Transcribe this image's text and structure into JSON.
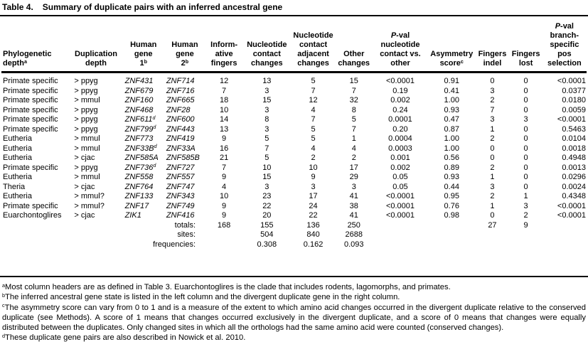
{
  "table": {
    "title_label": "Table 4.",
    "title": "Summary of duplicate pairs with an inferred ancestral gene",
    "columns": [
      {
        "id": "phylogenetic-depth",
        "lines": [
          "Phylogenetic",
          "depth^a"
        ]
      },
      {
        "id": "duplication-depth",
        "lines": [
          "Duplication",
          "depth"
        ]
      },
      {
        "id": "human-gene-1",
        "lines": [
          "Human",
          "gene",
          "1^b"
        ]
      },
      {
        "id": "human-gene-2",
        "lines": [
          "Human",
          "gene",
          "2^b"
        ]
      },
      {
        "id": "informative-fingers",
        "lines": [
          "Inform-",
          "ative",
          "fingers"
        ]
      },
      {
        "id": "nucleotide-contact-changes",
        "lines": [
          "Nucleotide",
          "contact",
          "changes"
        ]
      },
      {
        "id": "nucleotide-contact-adjacent-changes",
        "lines": [
          "Nucleotide",
          "contact",
          "adjacent",
          "changes"
        ]
      },
      {
        "id": "other-changes",
        "lines": [
          "Other",
          "changes"
        ]
      },
      {
        "id": "pval-nucleotide-contact-vs-other",
        "lines": [
          "P-val",
          "nucleotide",
          "contact vs.",
          "other"
        ]
      },
      {
        "id": "asymmetry-score",
        "lines": [
          "Asymmetry",
          "score^c"
        ]
      },
      {
        "id": "fingers-indel",
        "lines": [
          "Fingers",
          "indel"
        ]
      },
      {
        "id": "fingers-lost",
        "lines": [
          "Fingers",
          "lost"
        ]
      },
      {
        "id": "pval-branch-specific-pos-selection",
        "lines": [
          "P-val",
          "branch-",
          "specific",
          "pos",
          "selection"
        ]
      }
    ],
    "rows": [
      [
        "Primate specific",
        "> ppyg",
        "ZNF431",
        "ZNF714",
        "12",
        "13",
        "5",
        "15",
        "<0.0001",
        "0.91",
        "0",
        "0",
        "<0.0001"
      ],
      [
        "Primate specific",
        "> ppyg",
        "ZNF679",
        "ZNF716",
        "7",
        "3",
        "7",
        "7",
        "0.19",
        "0.41",
        "3",
        "0",
        "0.0377"
      ],
      [
        "Primate specific",
        "> mmul",
        "ZNF160",
        "ZNF665",
        "18",
        "15",
        "12",
        "32",
        "0.002",
        "1.00",
        "2",
        "0",
        "0.0180"
      ],
      [
        "Primate specific",
        "> ppyg",
        "ZNF468",
        "ZNF28",
        "10",
        "3",
        "4",
        "8",
        "0.24",
        "0.93",
        "7",
        "0",
        "0.0059"
      ],
      [
        "Primate specific",
        "> ppyg",
        "ZNF611^d",
        "ZNF600",
        "14",
        "8",
        "7",
        "5",
        "0.0001",
        "0.47",
        "3",
        "3",
        "<0.0001"
      ],
      [
        "Primate specific",
        "> ppyg",
        "ZNF799^d",
        "ZNF443",
        "13",
        "3",
        "5",
        "7",
        "0.20",
        "0.87",
        "1",
        "0",
        "0.5463"
      ],
      [
        "Eutheria",
        "> mmul",
        "ZNF773",
        "ZNF419",
        "9",
        "5",
        "5",
        "1",
        "0.0004",
        "1.00",
        "2",
        "0",
        "0.0104"
      ],
      [
        "Eutheria",
        "> mmul",
        "ZNF33B^d",
        "ZNF33A",
        "16",
        "7",
        "4",
        "4",
        "0.0003",
        "1.00",
        "0",
        "0",
        "0.0018"
      ],
      [
        "Eutheria",
        "> cjac",
        "ZNF585A",
        "ZNF585B",
        "21",
        "5",
        "2",
        "2",
        "0.001",
        "0.56",
        "0",
        "0",
        "0.4948"
      ],
      [
        "Primate specific",
        "> ppyg",
        "ZNF736^d",
        "ZNF727",
        "7",
        "10",
        "10",
        "17",
        "0.002",
        "0.89",
        "2",
        "0",
        "0.0013"
      ],
      [
        "Eutheria",
        "> mmul",
        "ZNF558",
        "ZNF557",
        "9",
        "15",
        "9",
        "29",
        "0.05",
        "0.93",
        "1",
        "0",
        "0.0296"
      ],
      [
        "Theria",
        "> cjac",
        "ZNF764",
        "ZNF747",
        "4",
        "3",
        "3",
        "3",
        "0.05",
        "0.44",
        "3",
        "0",
        "0.0024"
      ],
      [
        "Eutheria",
        "> mmul?",
        "ZNF133",
        "ZNF343",
        "10",
        "23",
        "17",
        "41",
        "<0.0001",
        "0.95",
        "2",
        "1",
        "0.4348"
      ],
      [
        "Primate specific",
        "> mmul?",
        "ZNF17",
        "ZNF749",
        "9",
        "22",
        "24",
        "38",
        "<0.0001",
        "0.76",
        "1",
        "3",
        "<0.0001"
      ],
      [
        "Euarchontoglires",
        "> cjac",
        "ZIK1",
        "ZNF416",
        "9",
        "20",
        "22",
        "41",
        "<0.0001",
        "0.98",
        "0",
        "2",
        "<0.0001"
      ]
    ],
    "summary_rows": [
      {
        "label": "totals:",
        "values": [
          "168",
          "155",
          "136",
          "250",
          "",
          "",
          "27",
          "9",
          ""
        ]
      },
      {
        "label": "sites:",
        "values": [
          "",
          "504",
          "840",
          "2688",
          "",
          "",
          "",
          "",
          ""
        ]
      },
      {
        "label": "frequencies:",
        "values": [
          "",
          "0.308",
          "0.162",
          "0.093",
          "",
          "",
          "",
          "",
          ""
        ]
      }
    ],
    "footnotes": [
      {
        "marker": "a",
        "text": "Most column headers are as defined in Table 3. Euarchontoglires is the clade that includes rodents, lagomorphs, and primates."
      },
      {
        "marker": "b",
        "text": "The inferred ancestral gene state is listed in the left column and the divergent duplicate gene in the right column."
      },
      {
        "marker": "c",
        "text": "The asymmetry score can vary from 0 to 1 and is a measure of the extent to which amino acid changes occurred in the divergent duplicate relative to the conserved duplicate (see Methods). A score of 1 means that changes occurred exclusively in the divergent duplicate, and a score of 0 means that changes were equally distributed between the duplicates. Only changed sites in which all the orthologs had the same amino acid were counted (conserved changes)."
      },
      {
        "marker": "d",
        "text": "These duplicate gene pairs are also described in Nowick et al. 2010."
      }
    ]
  }
}
